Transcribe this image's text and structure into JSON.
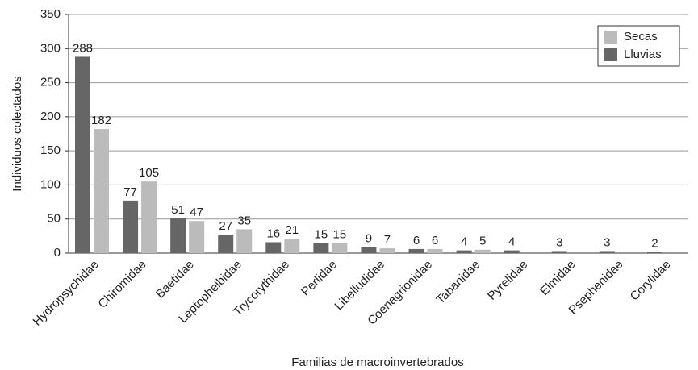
{
  "chart_data": {
    "type": "bar",
    "xlabel": "Familias de macroinvertebrados",
    "ylabel": "Individuos colectados",
    "categories": [
      "Hydropsychidae",
      "Chiromidae",
      "Baetidae",
      "Leptopheibidae",
      "Trycorythidae",
      "Perlidae",
      "Libelludidae",
      "Coenagrionidae",
      "Tabanidae",
      "Pyrelidae",
      "Elmidae",
      "Psephenidae",
      "Corylidae"
    ],
    "series": [
      {
        "name": "Lluvias",
        "color": "#666666",
        "values": [
          288,
          77,
          51,
          27,
          16,
          15,
          9,
          6,
          4,
          4,
          3,
          3,
          2
        ]
      },
      {
        "name": "Secas",
        "color": "#bbbbbb",
        "values": [
          182,
          105,
          47,
          35,
          21,
          15,
          7,
          6,
          5,
          null,
          null,
          null,
          null
        ]
      }
    ],
    "ylim": [
      0,
      350
    ],
    "yticks": [
      0,
      50,
      100,
      150,
      200,
      250,
      300,
      350
    ],
    "grid": true,
    "legend": "upper right"
  }
}
